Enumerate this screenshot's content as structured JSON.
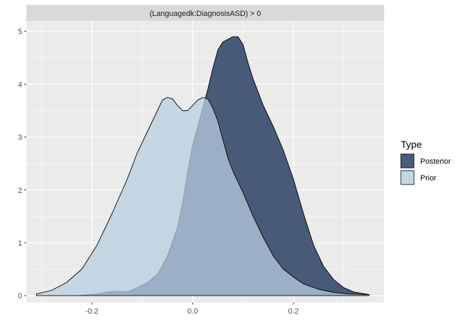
{
  "chart_data": {
    "type": "area",
    "facet_label": "(Languagedk:DiagnosisASD) > 0",
    "xlim": [
      -0.33,
      0.38
    ],
    "ylim": [
      -0.13,
      5.2
    ],
    "x_ticks": [
      -0.2,
      0.0,
      0.2
    ],
    "x_tick_labels": [
      "-0.2",
      "0.0",
      "0.2"
    ],
    "y_ticks": [
      0,
      1,
      2,
      3,
      4,
      5
    ],
    "y_tick_labels": [
      "0",
      "1",
      "2",
      "3",
      "4",
      "5"
    ],
    "grid": true,
    "legend": {
      "title": "Type",
      "position": "right",
      "entries": [
        "Posterior",
        "Prior"
      ]
    },
    "series": [
      {
        "name": "Posterior",
        "color": "#354a6c",
        "x": [
          -0.23,
          -0.19,
          -0.17,
          -0.15,
          -0.13,
          -0.11,
          -0.09,
          -0.07,
          -0.05,
          -0.03,
          -0.02,
          -0.01,
          0.0,
          0.01,
          0.02,
          0.03,
          0.04,
          0.05,
          0.06,
          0.07,
          0.08,
          0.09,
          0.1,
          0.11,
          0.12,
          0.13,
          0.14,
          0.16,
          0.18,
          0.2,
          0.22,
          0.24,
          0.26,
          0.28,
          0.3,
          0.32,
          0.35
        ],
        "y": [
          0.0,
          0.03,
          0.07,
          0.08,
          0.07,
          0.15,
          0.25,
          0.4,
          0.75,
          1.3,
          1.75,
          2.35,
          2.85,
          3.2,
          3.55,
          3.9,
          4.3,
          4.65,
          4.8,
          4.85,
          4.9,
          4.9,
          4.75,
          4.4,
          4.1,
          3.85,
          3.6,
          3.2,
          2.75,
          2.2,
          1.55,
          0.95,
          0.55,
          0.3,
          0.15,
          0.07,
          0.02
        ]
      },
      {
        "name": "Prior",
        "color": "#b7cde0",
        "x": [
          -0.31,
          -0.28,
          -0.25,
          -0.22,
          -0.19,
          -0.16,
          -0.13,
          -0.11,
          -0.09,
          -0.07,
          -0.06,
          -0.05,
          -0.04,
          -0.03,
          -0.02,
          -0.01,
          0.0,
          0.01,
          0.02,
          0.03,
          0.04,
          0.05,
          0.06,
          0.07,
          0.08,
          0.09,
          0.1,
          0.12,
          0.14,
          0.16,
          0.18,
          0.2,
          0.22,
          0.25,
          0.28,
          0.31,
          0.35
        ],
        "y": [
          0.03,
          0.1,
          0.25,
          0.5,
          0.95,
          1.55,
          2.2,
          2.7,
          3.1,
          3.5,
          3.7,
          3.75,
          3.72,
          3.6,
          3.5,
          3.5,
          3.6,
          3.7,
          3.75,
          3.72,
          3.55,
          3.3,
          2.95,
          2.6,
          2.35,
          2.15,
          1.95,
          1.5,
          1.1,
          0.75,
          0.5,
          0.35,
          0.22,
          0.12,
          0.06,
          0.03,
          0.02
        ]
      }
    ]
  }
}
